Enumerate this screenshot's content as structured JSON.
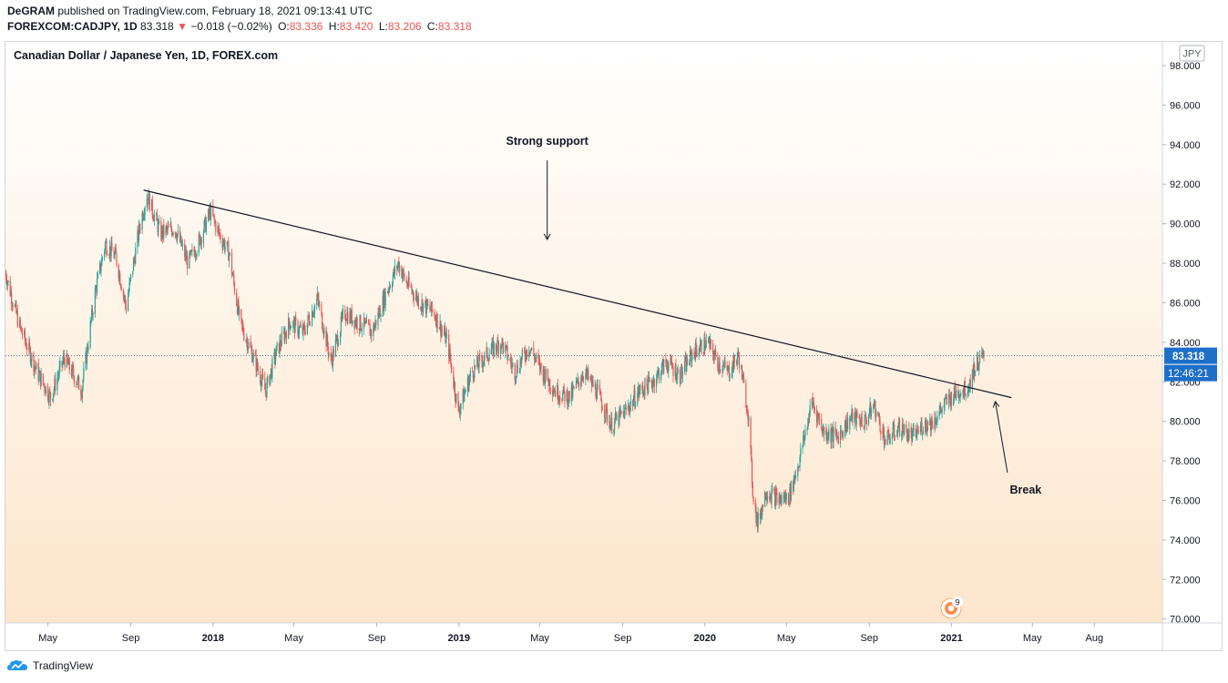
{
  "header": {
    "author": "DeGRAM",
    "published": "published on TradingView.com, February 18, 2021 09:13:41 UTC",
    "symbol": "FOREXCOM:CADJPY, 1D",
    "last": "83.318",
    "change_arrow": "▼",
    "change": "−0.018 (−0.02%)",
    "o_label": "O:",
    "o": "83.336",
    "h_label": "H:",
    "h": "83.420",
    "l_label": "L:",
    "l": "83.206",
    "c_label": "C:",
    "c": "83.318"
  },
  "chart_title": "Canadian Dollar / Japanese Yen, 1D, FOREX.com",
  "currency_badge": "JPY",
  "price_label": "83.318",
  "countdown_label": "12:46:21",
  "footer": {
    "brand": "TradingView"
  },
  "icons": {
    "brand_logo": "tradingview-cloud-icon",
    "alert": "alert-badge-icon"
  },
  "alert_badge_count": "9",
  "colors": {
    "up": "#26a69a",
    "down": "#ef5350",
    "bg_top": "#ffffff",
    "bg_bottom": "#fde6cc",
    "label_bg": "#1e6fc8"
  },
  "chart_data": {
    "type": "candlestick",
    "title": "Canadian Dollar / Japanese Yen, 1D, FOREX.com",
    "ylim": [
      69.8,
      99.2
    ],
    "yticks": [
      "70.000",
      "72.000",
      "74.000",
      "76.000",
      "78.000",
      "80.000",
      "82.000",
      "84.000",
      "86.000",
      "88.000",
      "90.000",
      "92.000",
      "94.000",
      "96.000",
      "98.000"
    ],
    "xticks": [
      {
        "label": "May",
        "date": "2017-05-01",
        "bold": false
      },
      {
        "label": "Sep",
        "date": "2017-09-01",
        "bold": false
      },
      {
        "label": "2018",
        "date": "2018-01-01",
        "bold": true
      },
      {
        "label": "May",
        "date": "2018-05-01",
        "bold": false
      },
      {
        "label": "Sep",
        "date": "2018-09-01",
        "bold": false
      },
      {
        "label": "2019",
        "date": "2019-01-01",
        "bold": true
      },
      {
        "label": "May",
        "date": "2019-05-01",
        "bold": false
      },
      {
        "label": "Sep",
        "date": "2019-09-01",
        "bold": false
      },
      {
        "label": "2020",
        "date": "2020-01-01",
        "bold": true
      },
      {
        "label": "May",
        "date": "2020-05-01",
        "bold": false
      },
      {
        "label": "Sep",
        "date": "2020-09-01",
        "bold": false
      },
      {
        "label": "2021",
        "date": "2021-01-01",
        "bold": true
      },
      {
        "label": "May",
        "date": "2021-05-01",
        "bold": false
      },
      {
        "label": "Aug",
        "date": "2021-08-01",
        "bold": false
      }
    ],
    "x_range": [
      "2017-02-27",
      "2021-11-10"
    ],
    "last_price": 83.318,
    "close_path": [
      {
        "date": "2017-02-27",
        "close": 87.5
      },
      {
        "date": "2017-03-20",
        "close": 84.8
      },
      {
        "date": "2017-04-15",
        "close": 82.5
      },
      {
        "date": "2017-05-05",
        "close": 81.2
      },
      {
        "date": "2017-05-25",
        "close": 83.2
      },
      {
        "date": "2017-06-20",
        "close": 81.6
      },
      {
        "date": "2017-07-10",
        "close": 86.5
      },
      {
        "date": "2017-07-25",
        "close": 89.0
      },
      {
        "date": "2017-08-10",
        "close": 88.3
      },
      {
        "date": "2017-08-25",
        "close": 85.8
      },
      {
        "date": "2017-09-15",
        "close": 90.0
      },
      {
        "date": "2017-09-25",
        "close": 91.5
      },
      {
        "date": "2017-10-15",
        "close": 89.5
      },
      {
        "date": "2017-11-05",
        "close": 89.8
      },
      {
        "date": "2017-11-25",
        "close": 88.0
      },
      {
        "date": "2017-12-10",
        "close": 89.0
      },
      {
        "date": "2017-12-28",
        "close": 90.6
      },
      {
        "date": "2018-01-10",
        "close": 89.5
      },
      {
        "date": "2018-01-25",
        "close": 88.5
      },
      {
        "date": "2018-02-10",
        "close": 85.0
      },
      {
        "date": "2018-03-05",
        "close": 83.0
      },
      {
        "date": "2018-03-20",
        "close": 81.5
      },
      {
        "date": "2018-04-05",
        "close": 83.5
      },
      {
        "date": "2018-04-25",
        "close": 85.0
      },
      {
        "date": "2018-05-15",
        "close": 84.5
      },
      {
        "date": "2018-06-05",
        "close": 86.2
      },
      {
        "date": "2018-06-25",
        "close": 83.0
      },
      {
        "date": "2018-07-15",
        "close": 85.5
      },
      {
        "date": "2018-08-05",
        "close": 85.0
      },
      {
        "date": "2018-08-25",
        "close": 84.5
      },
      {
        "date": "2018-09-15",
        "close": 86.5
      },
      {
        "date": "2018-10-03",
        "close": 88.0
      },
      {
        "date": "2018-10-15",
        "close": 87.0
      },
      {
        "date": "2018-11-05",
        "close": 86.0
      },
      {
        "date": "2018-11-25",
        "close": 85.5
      },
      {
        "date": "2018-12-15",
        "close": 84.0
      },
      {
        "date": "2018-12-31",
        "close": 80.5
      },
      {
        "date": "2019-01-20",
        "close": 82.5
      },
      {
        "date": "2019-02-15",
        "close": 83.5
      },
      {
        "date": "2019-03-05",
        "close": 84.0
      },
      {
        "date": "2019-03-25",
        "close": 82.5
      },
      {
        "date": "2019-04-15",
        "close": 83.8
      },
      {
        "date": "2019-05-05",
        "close": 82.5
      },
      {
        "date": "2019-05-25",
        "close": 81.5
      },
      {
        "date": "2019-06-15",
        "close": 81.2
      },
      {
        "date": "2019-07-05",
        "close": 82.5
      },
      {
        "date": "2019-07-25",
        "close": 81.5
      },
      {
        "date": "2019-08-15",
        "close": 79.8
      },
      {
        "date": "2019-09-05",
        "close": 80.5
      },
      {
        "date": "2019-09-25",
        "close": 81.5
      },
      {
        "date": "2019-10-15",
        "close": 82.0
      },
      {
        "date": "2019-11-05",
        "close": 83.0
      },
      {
        "date": "2019-11-25",
        "close": 82.3
      },
      {
        "date": "2019-12-15",
        "close": 83.5
      },
      {
        "date": "2020-01-05",
        "close": 84.0
      },
      {
        "date": "2020-01-20",
        "close": 83.0
      },
      {
        "date": "2020-02-05",
        "close": 82.5
      },
      {
        "date": "2020-02-20",
        "close": 83.3
      },
      {
        "date": "2020-03-05",
        "close": 80.5
      },
      {
        "date": "2020-03-12",
        "close": 76.5
      },
      {
        "date": "2020-03-19",
        "close": 74.8
      },
      {
        "date": "2020-04-01",
        "close": 76.5
      },
      {
        "date": "2020-04-20",
        "close": 76.0
      },
      {
        "date": "2020-05-05",
        "close": 76.2
      },
      {
        "date": "2020-05-20",
        "close": 78.0
      },
      {
        "date": "2020-06-08",
        "close": 81.0
      },
      {
        "date": "2020-06-25",
        "close": 79.5
      },
      {
        "date": "2020-07-15",
        "close": 79.2
      },
      {
        "date": "2020-08-05",
        "close": 80.2
      },
      {
        "date": "2020-08-25",
        "close": 80.0
      },
      {
        "date": "2020-09-08",
        "close": 80.8
      },
      {
        "date": "2020-09-25",
        "close": 79.0
      },
      {
        "date": "2020-10-15",
        "close": 79.7
      },
      {
        "date": "2020-11-05",
        "close": 79.2
      },
      {
        "date": "2020-11-20",
        "close": 79.8
      },
      {
        "date": "2020-12-05",
        "close": 80.0
      },
      {
        "date": "2020-12-25",
        "close": 81.0
      },
      {
        "date": "2021-01-10",
        "close": 81.5
      },
      {
        "date": "2021-01-25",
        "close": 81.7
      },
      {
        "date": "2021-02-05",
        "close": 82.8
      },
      {
        "date": "2021-02-18",
        "close": 83.318
      }
    ],
    "trendline": {
      "start": {
        "date": "2017-09-20",
        "price": 91.7
      },
      "end": {
        "date": "2021-03-31",
        "price": 81.2
      }
    },
    "annotations": [
      {
        "text": "Strong support",
        "arrow_from": {
          "date": "2019-05-12",
          "price": 93.2
        },
        "arrow_to": {
          "date": "2019-05-12",
          "price": 89.2
        }
      },
      {
        "text": "Break",
        "arrow_from": {
          "date": "2021-03-25",
          "price": 77.4
        },
        "arrow_to": {
          "date": "2021-03-07",
          "price": 81.0
        }
      }
    ]
  }
}
